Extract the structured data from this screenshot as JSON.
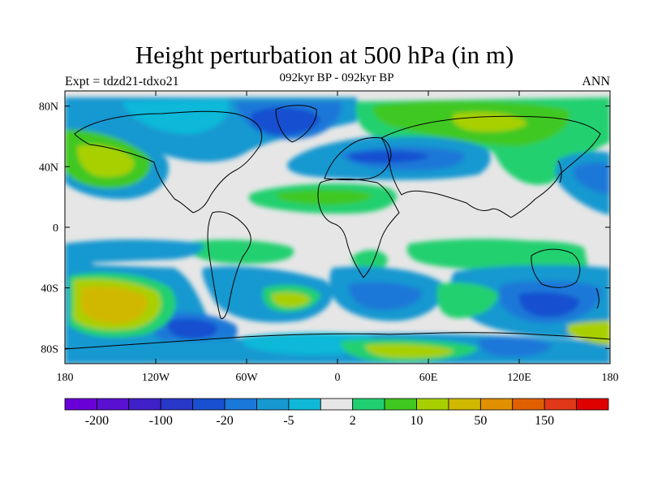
{
  "header": {
    "title": "Height perturbation at 500 hPa (in m)",
    "left_label": "Expt = tdzd21-tdxo21",
    "center_label": "092kyr BP - 092kyr BP",
    "right_label": "ANN"
  },
  "chart_data": {
    "type": "heatmap",
    "projection": "cylindrical-equidistant",
    "xlim": [
      -180,
      180
    ],
    "ylim": [
      -90,
      90
    ],
    "x_ticks": [
      {
        "value": -180,
        "label": "180"
      },
      {
        "value": -120,
        "label": "120W"
      },
      {
        "value": -60,
        "label": "60W"
      },
      {
        "value": 0,
        "label": "0"
      },
      {
        "value": 60,
        "label": "60E"
      },
      {
        "value": 120,
        "label": "120E"
      },
      {
        "value": 180,
        "label": "180"
      }
    ],
    "y_ticks": [
      {
        "value": 80,
        "label": "80N"
      },
      {
        "value": 40,
        "label": "40N"
      },
      {
        "value": 0,
        "label": "0"
      },
      {
        "value": -40,
        "label": "40S"
      },
      {
        "value": -80,
        "label": "80S"
      }
    ],
    "colorbar": {
      "colors": [
        "#6a00d8",
        "#5a10d0",
        "#4020c8",
        "#2838c8",
        "#1850d0",
        "#1a78d8",
        "#1898d0",
        "#10b8d8",
        "#e6e6e6",
        "#20d070",
        "#40c820",
        "#a8d000",
        "#d0b800",
        "#e09000",
        "#e06000",
        "#e03818",
        "#e00000"
      ],
      "labels": [
        {
          "boundary": 1,
          "text": "-200"
        },
        {
          "boundary": 3,
          "text": "-100"
        },
        {
          "boundary": 5,
          "text": "-20"
        },
        {
          "boundary": 7,
          "text": "-5"
        },
        {
          "boundary": 9,
          "text": "2"
        },
        {
          "boundary": 11,
          "text": "10"
        },
        {
          "boundary": 13,
          "text": "50"
        },
        {
          "boundary": 15,
          "text": "150"
        }
      ]
    }
  }
}
